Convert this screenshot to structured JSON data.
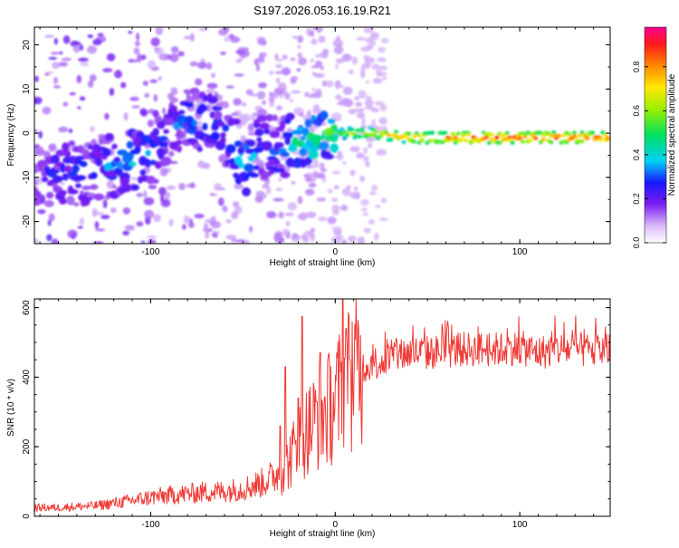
{
  "title": "S197.2026.053.16.19.R21",
  "chart_data": [
    {
      "type": "heatmap",
      "name": "spectrogram",
      "xlabel": "Height of straight line (km)",
      "ylabel": "Frequency (Hz)",
      "xlim": [
        -163,
        149
      ],
      "ylim": [
        -25,
        24
      ],
      "xticks": [
        -100,
        0,
        100
      ],
      "yticks": [
        -20,
        -10,
        0,
        10,
        20
      ],
      "colorbar": {
        "label": "Normalized spectral amplitude",
        "range": [
          0.0,
          0.98
        ],
        "ticks": [
          0.0,
          0.2,
          0.4,
          0.6,
          0.8
        ],
        "tick_labels": [
          "0.0",
          "0.2",
          "0.4",
          "0.6",
          "0.8"
        ]
      },
      "ridge": {
        "description": "dominant frequency track",
        "x": [
          -163,
          -140,
          -120,
          -110,
          -100,
          -90,
          -80,
          -70,
          -60,
          -50,
          -40,
          -30,
          -20,
          -10,
          0,
          10,
          20,
          40,
          60,
          80,
          100,
          120,
          149
        ],
        "y": [
          -10,
          -9,
          -7,
          -6,
          -4,
          1,
          3,
          3,
          0,
          -7,
          -3,
          -3,
          -3,
          -1,
          0,
          0,
          0,
          -1,
          -1,
          -1,
          -1,
          -1,
          -1
        ],
        "amplitude": [
          0.25,
          0.3,
          0.35,
          0.4,
          0.35,
          0.3,
          0.35,
          0.35,
          0.3,
          0.4,
          0.35,
          0.35,
          0.5,
          0.6,
          0.55,
          0.7,
          0.75,
          0.85,
          0.9,
          0.95,
          0.95,
          0.95,
          0.92
        ]
      }
    },
    {
      "type": "line",
      "name": "snr",
      "xlabel": "Height of straight line (km)",
      "ylabel": "SNR (10 * v/v)",
      "xlim": [
        -163,
        149
      ],
      "ylim": [
        0,
        625
      ],
      "xticks": [
        -100,
        0,
        100
      ],
      "yticks": [
        0,
        200,
        400,
        600
      ],
      "color": "#ef3b36",
      "series": [
        {
          "name": "SNR",
          "x": [
            -163,
            -150,
            -140,
            -130,
            -120,
            -110,
            -100,
            -90,
            -80,
            -70,
            -60,
            -50,
            -40,
            -30,
            -25,
            -20,
            -15,
            -10,
            -5,
            0,
            5,
            10,
            15,
            20,
            25,
            30,
            40,
            50,
            60,
            70,
            80,
            90,
            100,
            110,
            120,
            130,
            140,
            149
          ],
          "y": [
            25,
            25,
            28,
            30,
            38,
            45,
            55,
            60,
            65,
            70,
            72,
            80,
            95,
            125,
            160,
            210,
            250,
            280,
            300,
            330,
            380,
            420,
            430,
            440,
            445,
            455,
            470,
            470,
            475,
            480,
            480,
            480,
            485,
            470,
            480,
            480,
            475,
            480
          ]
        }
      ],
      "peaks": {
        "x": [
          -30,
          -27,
          -20,
          -18,
          -10,
          -8,
          4,
          6,
          8
        ],
        "y": [
          260,
          430,
          340,
          575,
          330,
          470,
          630,
          540,
          450
        ]
      }
    }
  ]
}
